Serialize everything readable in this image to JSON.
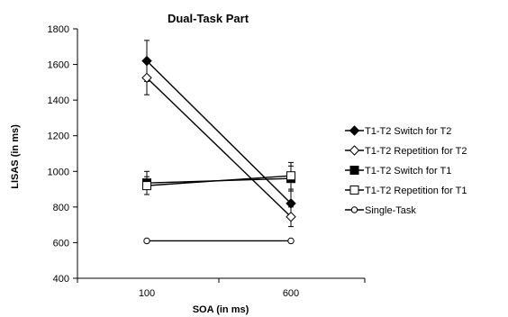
{
  "chart_data": {
    "type": "line",
    "title": "Dual-Task Part",
    "xlabel": "SOA (in ms)",
    "ylabel": "LISAS (in ms)",
    "categories": [
      "100",
      "600"
    ],
    "ylim": [
      400,
      1800
    ],
    "yticks": [
      "400",
      "600",
      "800",
      "1000",
      "1200",
      "1400",
      "1600",
      "1800"
    ],
    "grid": false,
    "legend_position": "right",
    "series": [
      {
        "name": "T1-T2 Switch for T2",
        "values": [
          1620,
          820
        ],
        "errors": [
          115,
          70
        ],
        "marker": "diamond",
        "filled": true
      },
      {
        "name": "T1-T2 Repetition for T2",
        "values": [
          1525,
          745
        ],
        "errors": [
          95,
          55
        ],
        "marker": "diamond",
        "filled": false
      },
      {
        "name": "T1-T2 Switch for T1",
        "values": [
          935,
          960
        ],
        "errors": [
          65,
          70
        ],
        "marker": "square",
        "filled": true
      },
      {
        "name": "T1-T2 Repetition for T1",
        "values": [
          920,
          975
        ],
        "errors": [
          50,
          75
        ],
        "marker": "square",
        "filled": false
      },
      {
        "name": "Single-Task",
        "values": [
          610,
          610
        ],
        "errors": [
          0,
          0
        ],
        "marker": "circle",
        "filled": false
      }
    ]
  }
}
